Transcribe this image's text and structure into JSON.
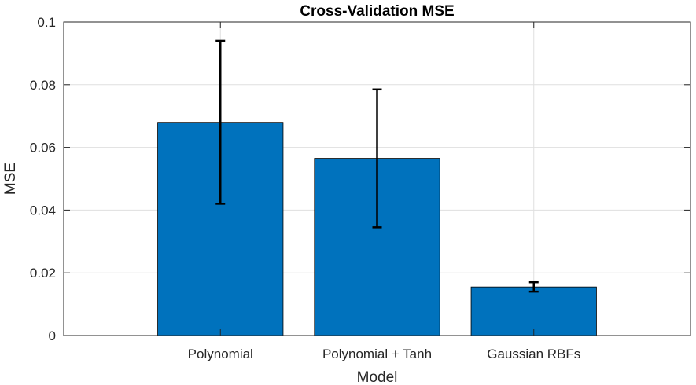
{
  "chart_data": {
    "type": "bar",
    "title": "Cross-Validation MSE",
    "xlabel": "Model",
    "ylabel": "MSE",
    "categories": [
      "Polynomial",
      "Polynomial + Tanh",
      "Gaussian RBFs"
    ],
    "values": [
      0.068,
      0.0565,
      0.0155
    ],
    "error_bars": {
      "lower": [
        0.042,
        0.0345,
        0.014
      ],
      "upper": [
        0.094,
        0.0785,
        0.017
      ]
    },
    "ylim": [
      0,
      0.1
    ],
    "yticks": [
      0,
      0.02,
      0.04,
      0.06,
      0.08,
      0.1
    ],
    "ytick_labels": [
      "0",
      "0.02",
      "0.04",
      "0.06",
      "0.08",
      "0.1"
    ],
    "grid": true,
    "bar_color": "#0072BD",
    "error_color": "#000000"
  }
}
